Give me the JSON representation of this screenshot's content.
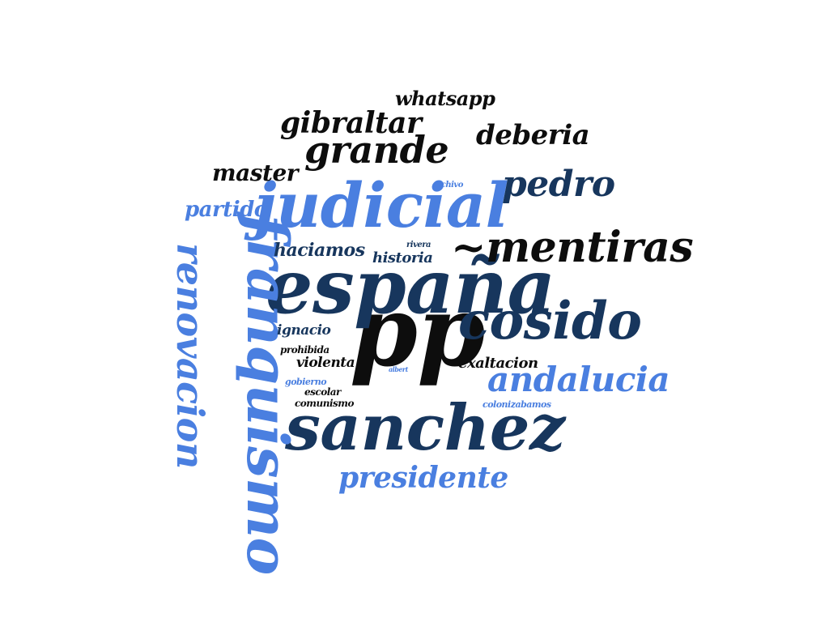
{
  "palette": {
    "black": "#0d0d0d",
    "navy": "#17365d",
    "light_blue": "#4a7fe0"
  },
  "words": {
    "pp": "pp",
    "espana": "españa",
    "sanchez": "sanchez",
    "judicial": "judicial",
    "franquismo": "franquismo",
    "cosido": "cosido",
    "mentiras": "~mentiras",
    "grande": "grande",
    "renovacion": "renovacion",
    "andalucia": "andalucia",
    "pedro": "pedro",
    "presidente": "presidente",
    "gibraltar": "gibraltar",
    "deberia": "deberia",
    "master": "master",
    "whatsapp": "whatsapp",
    "partido": "partido",
    "haciamos": "haciamos",
    "historia": "historia",
    "ignacio": "ignacio",
    "violenta": "violenta",
    "exaltacion": "exaltacion",
    "prohibida": "prohibida",
    "gobierno": "gobierno",
    "escolar": "escolar",
    "comunismo": "comunismo",
    "colonizabamos": "colonizabamos",
    "archivo": "archivo",
    "rivera": "rivera",
    "albert": "albert"
  }
}
